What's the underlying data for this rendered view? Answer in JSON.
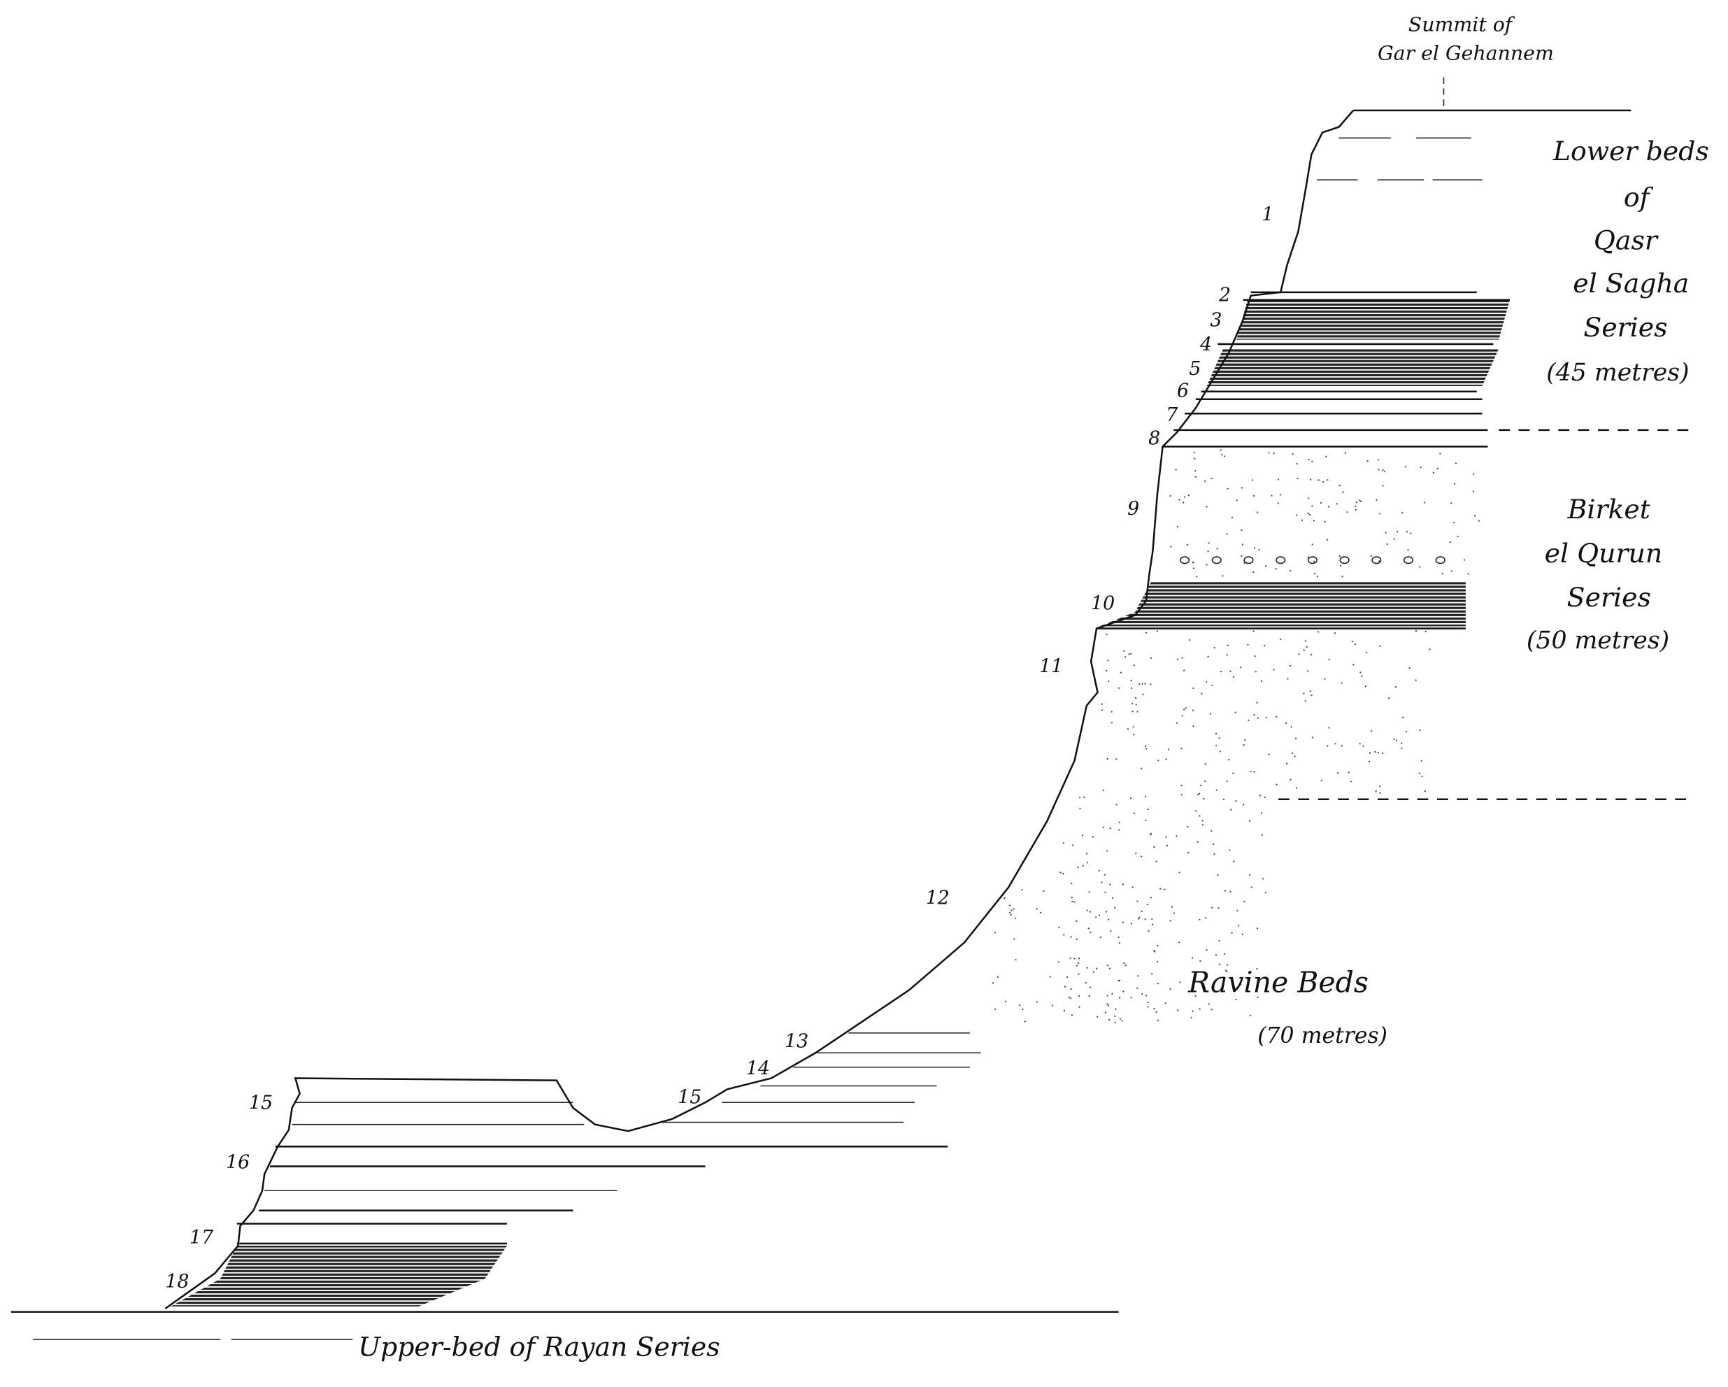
{
  "summit_label": {
    "line1": "Summit of",
    "line2": "Gar el Gehannem"
  },
  "series": [
    {
      "lines": [
        "Lower beds",
        "of",
        "Qasr",
        "el Sagha",
        "Series",
        "(45 metres)"
      ]
    },
    {
      "lines": [
        "Birket",
        "el Qurun",
        "Series",
        "(50 metres)"
      ]
    },
    {
      "lines": [
        "Ravine Beds",
        "(70 metres)"
      ]
    }
  ],
  "base_label": "Upper-bed of Rayan Series",
  "bed_numbers": [
    "1",
    "2",
    "3",
    "4",
    "5",
    "6",
    "7",
    "8",
    "9",
    "10",
    "11",
    "12",
    "13",
    "14",
    "15",
    "15",
    "16",
    "17",
    "18"
  ]
}
